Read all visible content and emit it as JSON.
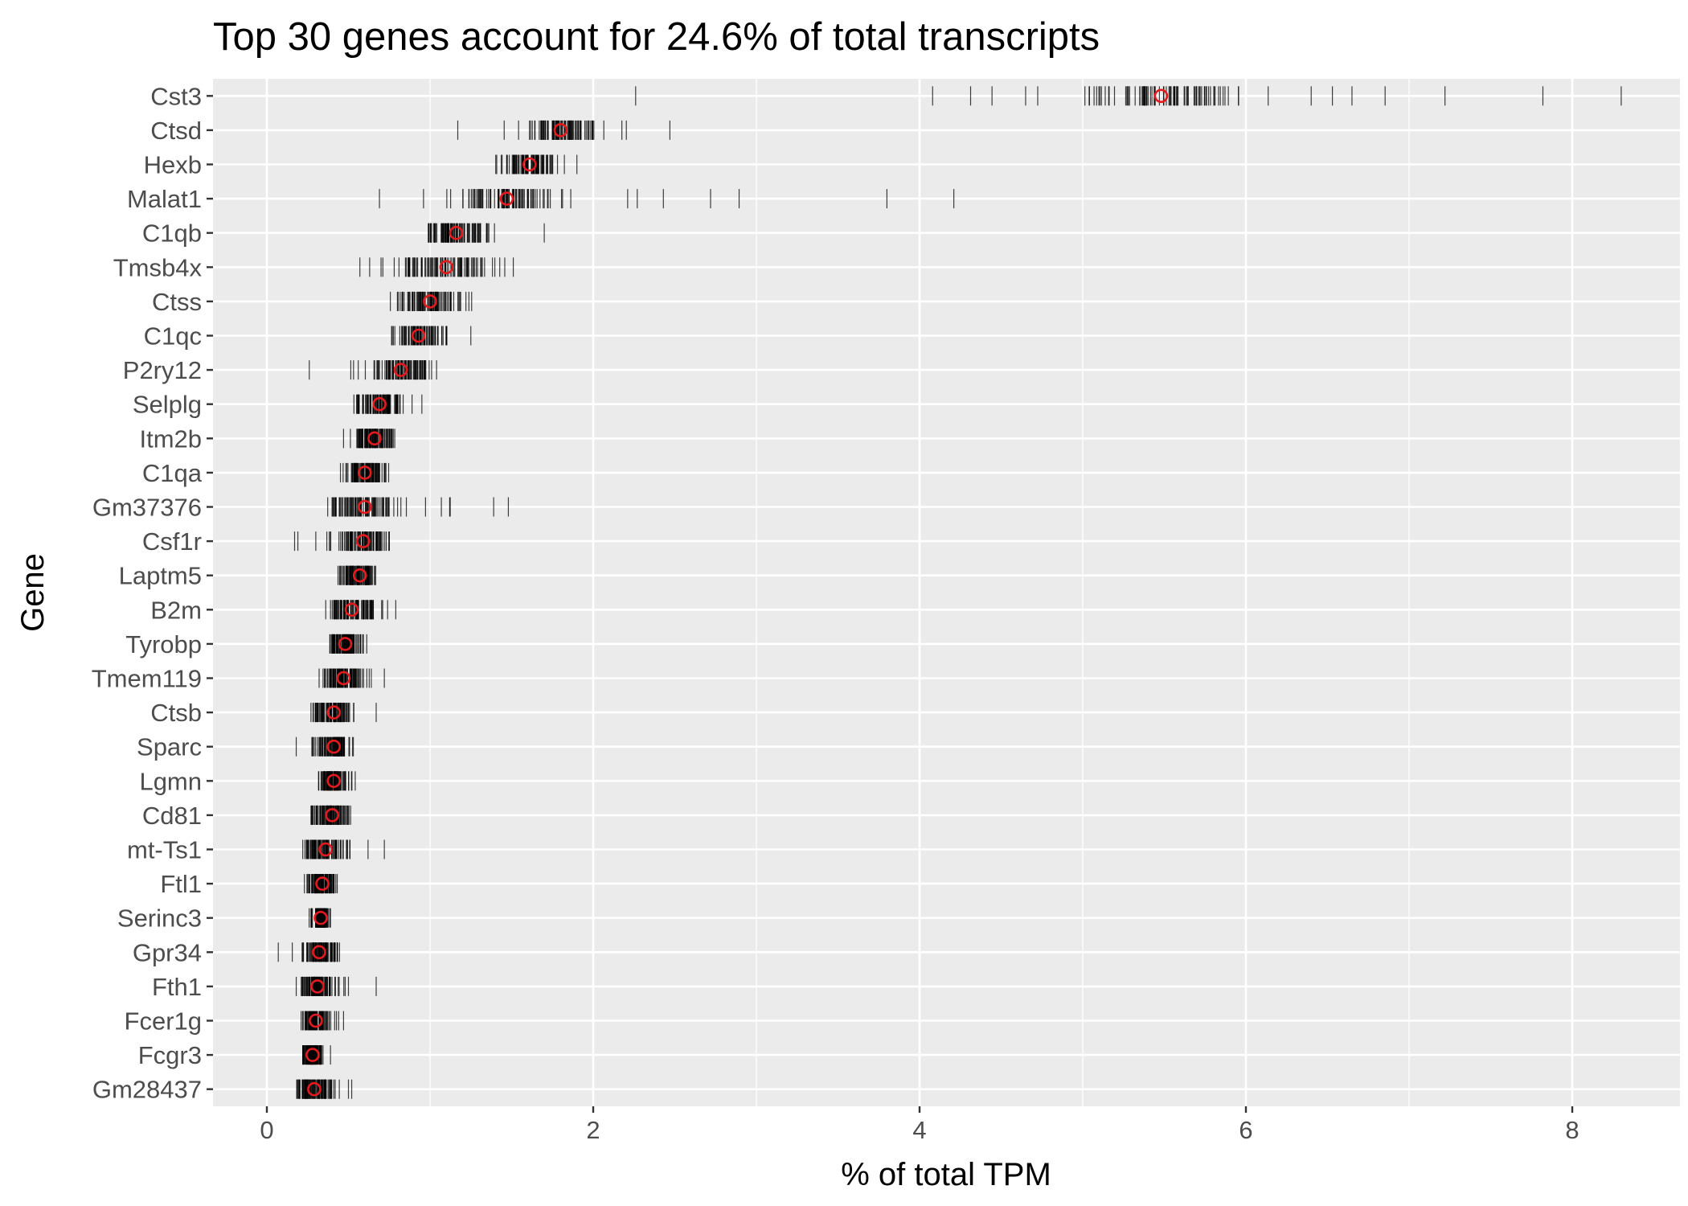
{
  "chart_data": {
    "type": "scatter",
    "title": "Top 30 genes account for 24.6% of total transcripts",
    "xlabel": "% of total TPM",
    "ylabel": "Gene",
    "xlim": [
      -0.33,
      8.66
    ],
    "xticks": [
      0,
      2,
      4,
      6,
      8
    ],
    "grid": true,
    "legend": "none",
    "colors": {
      "panel": "#ebebeb",
      "grid": "#ffffff",
      "tick_mark": "#000000",
      "median_marker": "#e41a1c",
      "tick_label": "#4d4d4d"
    },
    "genes": [
      {
        "name": "Cst3",
        "median": 5.48,
        "min": 2.26,
        "max": 8.3,
        "q1": 5.0,
        "q3": 5.9,
        "outliers": [
          2.26,
          4.08,
          4.65,
          6.4,
          6.53,
          6.65,
          7.22,
          7.82,
          8.3
        ]
      },
      {
        "name": "Ctsd",
        "median": 1.8,
        "min": 1.17,
        "max": 2.47,
        "q1": 1.72,
        "q3": 2.0,
        "outliers": [
          1.17,
          2.47
        ]
      },
      {
        "name": "Hexb",
        "median": 1.61,
        "min": 1.32,
        "max": 1.9,
        "q1": 1.5,
        "q3": 1.75,
        "outliers": [
          1.9
        ]
      },
      {
        "name": "Malat1",
        "median": 1.47,
        "min": 0.69,
        "max": 4.21,
        "q1": 1.2,
        "q3": 1.7,
        "outliers": [
          0.69,
          2.27,
          2.43,
          3.8,
          4.21
        ]
      },
      {
        "name": "C1qb",
        "median": 1.16,
        "min": 0.9,
        "max": 1.7,
        "q1": 1.0,
        "q3": 1.3,
        "outliers": [
          1.7
        ]
      },
      {
        "name": "Tmsb4x",
        "median": 1.1,
        "min": 0.57,
        "max": 1.65,
        "q1": 0.8,
        "q3": 1.3,
        "outliers": [
          0.57,
          0.63
        ]
      },
      {
        "name": "Ctss",
        "median": 1.0,
        "min": 0.62,
        "max": 1.27,
        "q1": 0.8,
        "q3": 1.15,
        "outliers": []
      },
      {
        "name": "C1qc",
        "median": 0.93,
        "min": 0.67,
        "max": 1.25,
        "q1": 0.8,
        "q3": 1.05,
        "outliers": [
          1.25
        ]
      },
      {
        "name": "P2ry12",
        "median": 0.82,
        "min": 0.26,
        "max": 1.04,
        "q1": 0.65,
        "q3": 0.95,
        "outliers": [
          0.26,
          0.56
        ]
      },
      {
        "name": "Selplg",
        "median": 0.69,
        "min": 0.4,
        "max": 0.95,
        "q1": 0.55,
        "q3": 0.8,
        "outliers": [
          0.95
        ]
      },
      {
        "name": "Itm2b",
        "median": 0.66,
        "min": 0.47,
        "max": 0.8,
        "q1": 0.55,
        "q3": 0.75,
        "outliers": [
          0.47
        ]
      },
      {
        "name": "C1qa",
        "median": 0.6,
        "min": 0.43,
        "max": 0.82,
        "q1": 0.52,
        "q3": 0.72,
        "outliers": []
      },
      {
        "name": "Gm37376",
        "median": 0.6,
        "min": 0.26,
        "max": 1.48,
        "q1": 0.42,
        "q3": 0.78,
        "outliers": [
          1.39,
          1.48
        ]
      },
      {
        "name": "Csf1r",
        "median": 0.59,
        "min": 0.17,
        "max": 0.75,
        "q1": 0.45,
        "q3": 0.7,
        "outliers": [
          0.17,
          0.19,
          0.3
        ]
      },
      {
        "name": "Laptm5",
        "median": 0.57,
        "min": 0.3,
        "max": 0.7,
        "q1": 0.45,
        "q3": 0.66,
        "outliers": []
      },
      {
        "name": "B2m",
        "median": 0.52,
        "min": 0.29,
        "max": 0.79,
        "q1": 0.4,
        "q3": 0.65,
        "outliers": [
          0.74,
          0.79
        ]
      },
      {
        "name": "Tyrobp",
        "median": 0.48,
        "min": 0.34,
        "max": 0.65,
        "q1": 0.4,
        "q3": 0.58,
        "outliers": []
      },
      {
        "name": "Tmem119",
        "median": 0.47,
        "min": 0.28,
        "max": 0.72,
        "q1": 0.36,
        "q3": 0.55,
        "outliers": [
          0.64,
          0.72
        ]
      },
      {
        "name": "Ctsb",
        "median": 0.41,
        "min": 0.27,
        "max": 0.67,
        "q1": 0.3,
        "q3": 0.5,
        "outliers": [
          0.67
        ]
      },
      {
        "name": "Sparc",
        "median": 0.41,
        "min": 0.18,
        "max": 0.53,
        "q1": 0.32,
        "q3": 0.48,
        "outliers": [
          0.18
        ]
      },
      {
        "name": "Lgmn",
        "median": 0.41,
        "min": 0.3,
        "max": 0.56,
        "q1": 0.33,
        "q3": 0.5,
        "outliers": []
      },
      {
        "name": "Cd81",
        "median": 0.4,
        "min": 0.2,
        "max": 0.53,
        "q1": 0.3,
        "q3": 0.48,
        "outliers": []
      },
      {
        "name": "mt-Ts1",
        "median": 0.36,
        "min": 0.21,
        "max": 0.72,
        "q1": 0.25,
        "q3": 0.45,
        "outliers": [
          0.62,
          0.72
        ]
      },
      {
        "name": "Ftl1",
        "median": 0.34,
        "min": 0.23,
        "max": 0.5,
        "q1": 0.27,
        "q3": 0.42,
        "outliers": []
      },
      {
        "name": "Serinc3",
        "median": 0.33,
        "min": 0.23,
        "max": 0.39,
        "q1": 0.27,
        "q3": 0.36,
        "outliers": []
      },
      {
        "name": "Gpr34",
        "median": 0.32,
        "min": 0.07,
        "max": 0.47,
        "q1": 0.24,
        "q3": 0.42,
        "outliers": [
          0.07
        ]
      },
      {
        "name": "Fth1",
        "median": 0.31,
        "min": 0.18,
        "max": 0.67,
        "q1": 0.22,
        "q3": 0.4,
        "outliers": [
          0.48,
          0.5,
          0.67
        ]
      },
      {
        "name": "Fcer1g",
        "median": 0.3,
        "min": 0.21,
        "max": 0.47,
        "q1": 0.23,
        "q3": 0.37,
        "outliers": [
          0.44,
          0.47
        ]
      },
      {
        "name": "Fcgr3",
        "median": 0.28,
        "min": 0.22,
        "max": 0.39,
        "q1": 0.24,
        "q3": 0.34,
        "outliers": [
          0.39
        ]
      },
      {
        "name": "Gm28437",
        "median": 0.29,
        "min": 0.13,
        "max": 0.52,
        "q1": 0.18,
        "q3": 0.4,
        "outliers": [
          0.5,
          0.52
        ]
      }
    ]
  }
}
